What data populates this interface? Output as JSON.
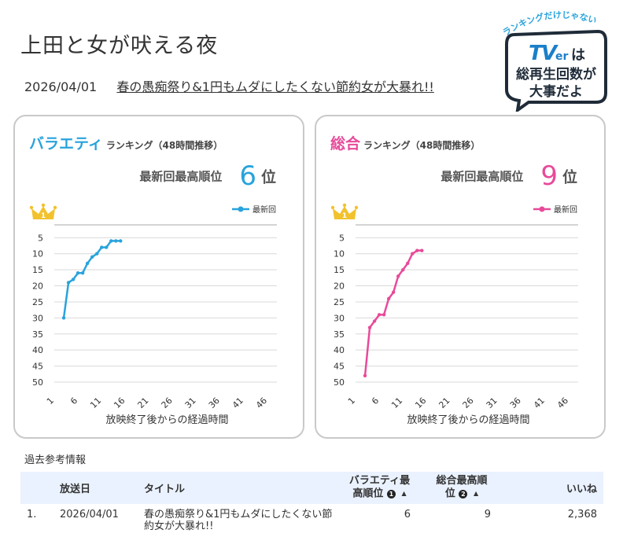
{
  "program": {
    "title": "上田と女が吠える夜",
    "episode_date": "2026/04/01",
    "episode_title": "春の愚痴祭り&1円もムダにしたくない節約女が大暴れ!!"
  },
  "badge": {
    "arc_text": "ランキングだけじゃない",
    "brand": "TVer",
    "brand_small": "er",
    "line1_suffix": "は",
    "line2": "総再生回数が",
    "line3": "大事だよ"
  },
  "colors": {
    "variety": "#29a3dc",
    "overall": "#e84a9a",
    "crown": "#f2c22e",
    "grid": "#d9d9d9",
    "header_bg": "#eaf2ff"
  },
  "variety_panel": {
    "title": "バラエティ",
    "subtitle": "ランキング（48時間推移）",
    "best_label": "最新回最高順位",
    "best_rank": "6",
    "best_unit": "位"
  },
  "overall_panel": {
    "title": "総合",
    "subtitle": "ランキング（48時間推移）",
    "best_label": "最新回最高順位",
    "best_rank": "9",
    "best_unit": "位"
  },
  "chart_data": [
    {
      "type": "line",
      "title": "バラエティ ランキング（48時間推移）",
      "xlabel": "放映終了後からの経過時間",
      "ylabel": "",
      "x_ticks": [
        "1",
        "6",
        "11",
        "16",
        "21",
        "26",
        "31",
        "36",
        "41",
        "46"
      ],
      "y_ticks": [
        "5",
        "10",
        "15",
        "20",
        "25",
        "30",
        "35",
        "40",
        "45",
        "50"
      ],
      "xlim": [
        1,
        48
      ],
      "ylim": [
        1,
        50
      ],
      "y_inverted": true,
      "legend_position": "top-right",
      "series": [
        {
          "name": "最新回",
          "color": "#29a3dc",
          "x": [
            3,
            4,
            5,
            6,
            7,
            8,
            9,
            10,
            11,
            12,
            13,
            14,
            15
          ],
          "y": [
            30,
            19,
            18,
            16,
            16,
            13,
            11,
            10,
            8,
            8,
            6,
            6,
            6
          ]
        }
      ]
    },
    {
      "type": "line",
      "title": "総合 ランキング（48時間推移）",
      "xlabel": "放映終了後からの経過時間",
      "ylabel": "",
      "x_ticks": [
        "1",
        "6",
        "11",
        "16",
        "21",
        "26",
        "31",
        "36",
        "41",
        "46"
      ],
      "y_ticks": [
        "5",
        "10",
        "15",
        "20",
        "25",
        "30",
        "35",
        "40",
        "45",
        "50"
      ],
      "xlim": [
        1,
        48
      ],
      "ylim": [
        1,
        50
      ],
      "y_inverted": true,
      "legend_position": "top-right",
      "series": [
        {
          "name": "最新回",
          "color": "#e84a9a",
          "x": [
            3,
            4,
            5,
            6,
            7,
            8,
            9,
            10,
            11,
            12,
            13,
            14,
            15
          ],
          "y": [
            48,
            33,
            31,
            29,
            29,
            24,
            22,
            17,
            15,
            13,
            10,
            9,
            9
          ]
        }
      ]
    }
  ],
  "past": {
    "label": "過去参考情報",
    "headers": {
      "date": "放送日",
      "title": "タイトル",
      "variety_l1": "バラエティ最",
      "variety_l2": "高順位",
      "variety_note": "1",
      "overall_l1": "総合最高順",
      "overall_l2": "位",
      "overall_note": "2",
      "sort_glyph": "▲",
      "likes": "いいね"
    },
    "rows": [
      {
        "index": "1.",
        "date": "2026/04/01",
        "title_l1": "春の愚痴祭り&1円もムダにしたくない節",
        "title_l2": "約女が大暴れ!!",
        "variety_rank": "6",
        "overall_rank": "9",
        "likes": "2,368"
      }
    ]
  }
}
